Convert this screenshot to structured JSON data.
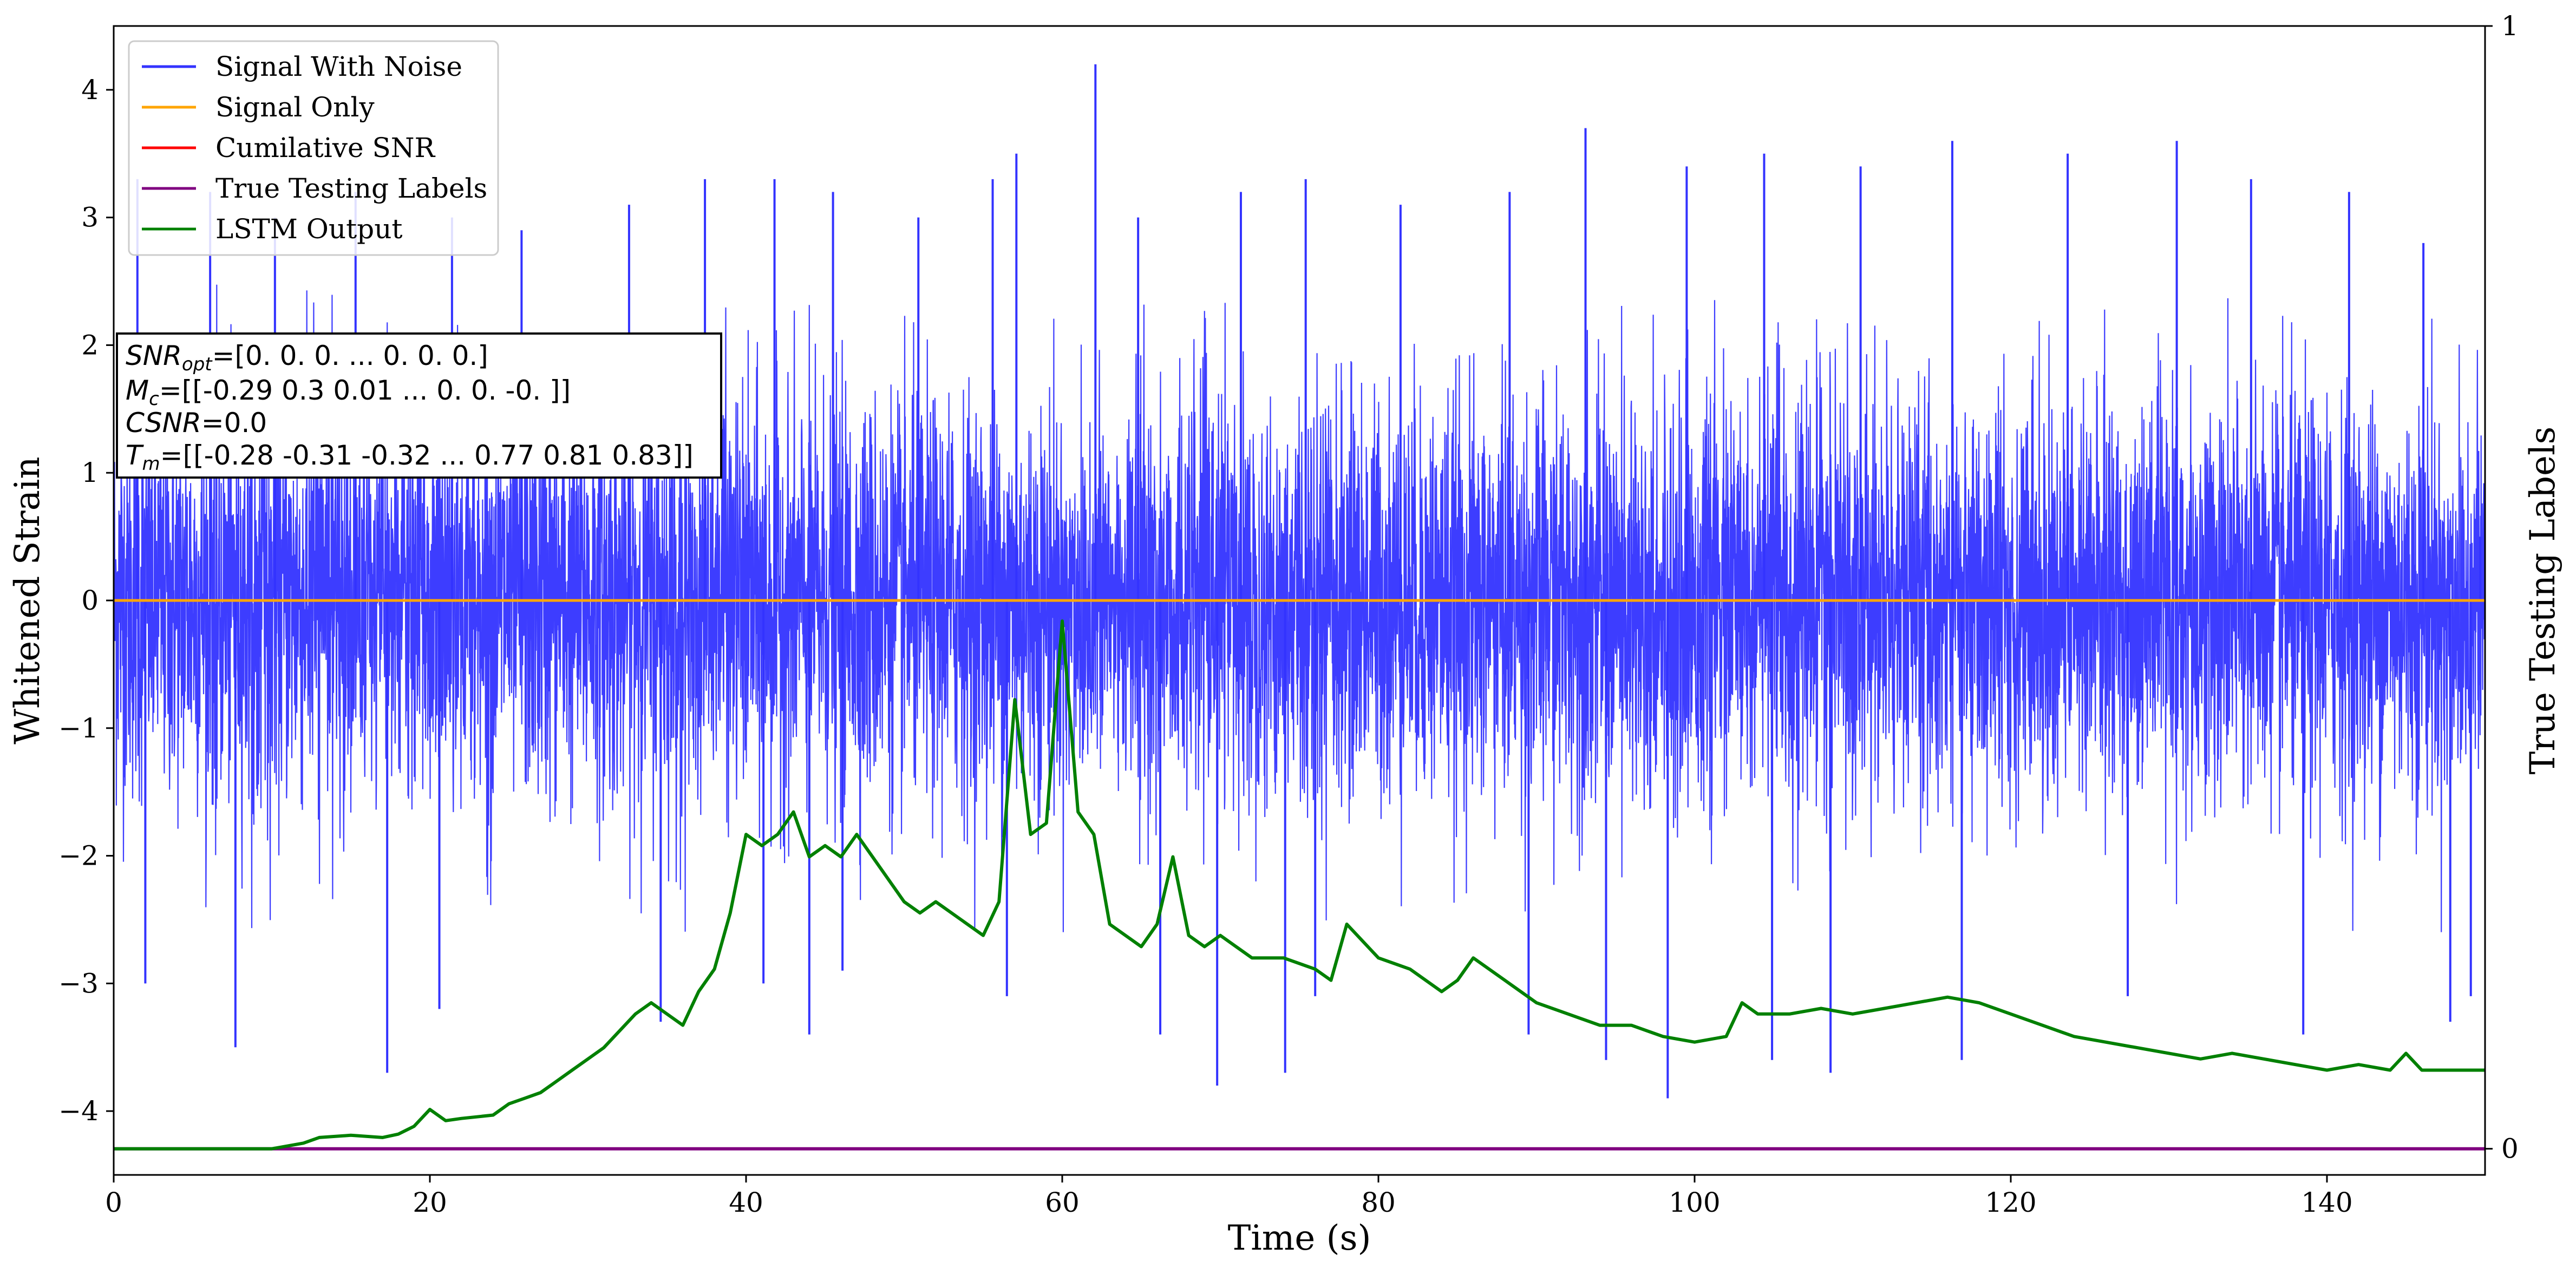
{
  "chart_data": {
    "type": "line",
    "xlabel": "Time (s)",
    "ylabel": "Whitened Strain",
    "y2label": "True Testing Labels",
    "xlim": [
      0,
      150
    ],
    "ylim": [
      -4.5,
      4.5
    ],
    "y2lim": [
      -0.0233,
      1.0
    ],
    "xticks": [
      "0",
      "20",
      "40",
      "60",
      "80",
      "100",
      "120",
      "140"
    ],
    "yticks": [
      "−4",
      "−3",
      "−2",
      "−1",
      "0",
      "1",
      "2",
      "3",
      "4"
    ],
    "y2ticks": [
      "0",
      "1"
    ],
    "grid": false,
    "legend_position": "top-left",
    "legend": [
      "Signal With Noise",
      "Signal Only",
      "Cumilative SNR",
      "True Testing Labels",
      "LSTM Output"
    ],
    "colors": {
      "signal_with_noise": "#3333ff",
      "signal_only": "#ffa500",
      "cumulative_snr": "#ff0000",
      "true_testing_labels": "#800080",
      "lstm_output": "#008000"
    },
    "annotation": {
      "line1": {
        "sym": "SNR",
        "sub": "opt",
        "val": "=[0. 0. 0. ... 0. 0. 0.]"
      },
      "line2": {
        "sym": "M",
        "sub": "c",
        "val": "=[[-0.29  0.3   0.01 ...  0.    0.   -0.  ]]"
      },
      "line3": {
        "sym": "CSNR",
        "sub": "",
        "val": "=0.0"
      },
      "line4": {
        "sym": "T",
        "sub": "m",
        "val": "=[[-0.28 -0.31 -0.32 ...  0.77  0.81  0.83]]"
      }
    },
    "series": [
      {
        "name": "Signal With Noise",
        "description": "dense noise band roughly between -2.5 and 3.2 with spikes up to 4.2 (at ~62 s) and down to -3.9",
        "envelope_upper": 2.5,
        "envelope_lower": -2.6,
        "x_spikes": [
          1.5,
          6.1,
          10.2,
          15.3,
          21.4,
          25.8,
          32.6,
          37.4,
          41.8,
          45.5,
          50.9,
          55.6,
          57.1,
          62.1,
          64.8,
          71.3,
          75.4,
          81.4,
          88.3,
          93.1,
          99.5,
          104.4,
          110.5,
          116.3,
          123.6,
          130.5,
          135.2,
          141.4,
          146.1,
          149.7
        ],
        "y_spikes": [
          3.3,
          3.2,
          3.0,
          3.2,
          3.0,
          2.9,
          3.1,
          3.3,
          3.3,
          3.2,
          3.0,
          3.3,
          3.5,
          4.2,
          3.0,
          3.2,
          3.3,
          3.1,
          3.2,
          3.7,
          3.4,
          3.5,
          3.4,
          3.6,
          3.5,
          3.6,
          3.3,
          3.2,
          2.8,
          0.5
        ],
        "x_low_spikes": [
          2.0,
          7.7,
          17.3,
          20.6,
          34.6,
          41.1,
          44.0,
          46.1,
          56.5,
          66.2,
          69.8,
          74.1,
          76.0,
          89.5,
          94.4,
          98.3,
          104.9,
          108.6,
          116.9,
          127.4,
          138.5,
          147.8,
          149.1
        ],
        "y_low_spikes": [
          -3.0,
          -3.5,
          -3.7,
          -3.2,
          -3.3,
          -3.0,
          -3.4,
          -2.9,
          -3.1,
          -3.4,
          -3.8,
          -3.7,
          -3.1,
          -3.4,
          -3.6,
          -3.9,
          -3.6,
          -3.7,
          -3.6,
          -3.1,
          -3.4,
          -3.3,
          -3.1
        ]
      },
      {
        "name": "Signal Only",
        "x": [
          0,
          150
        ],
        "y": [
          0,
          0
        ]
      },
      {
        "name": "Cumilative SNR",
        "x": [
          0,
          150
        ],
        "y": [
          0,
          0
        ]
      },
      {
        "name": "True Testing Labels",
        "axis": "right",
        "x": [
          0,
          150
        ],
        "y": [
          0,
          0
        ]
      },
      {
        "name": "LSTM Output",
        "axis": "right",
        "x": [
          0,
          5,
          10,
          12,
          13,
          15,
          17,
          18,
          19,
          20,
          21,
          22,
          24,
          25,
          26,
          27,
          28,
          29,
          30,
          31,
          32,
          33,
          34,
          35,
          36,
          37,
          38,
          39,
          40,
          41,
          42,
          43,
          44,
          45,
          46,
          47,
          48,
          49,
          50,
          51,
          52,
          53,
          54,
          55,
          56,
          57,
          58,
          59,
          60,
          61,
          62,
          63,
          64,
          65,
          66,
          67,
          68,
          69,
          70,
          72,
          74,
          76,
          77,
          78,
          80,
          82,
          84,
          85,
          86,
          88,
          90,
          92,
          94,
          96,
          98,
          100,
          102,
          103,
          104,
          106,
          108,
          110,
          112,
          114,
          116,
          118,
          120,
          122,
          124,
          126,
          128,
          130,
          132,
          134,
          136,
          138,
          140,
          142,
          144,
          145,
          146,
          148,
          150
        ],
        "y": [
          0.0,
          0.0,
          0.0,
          0.005,
          0.01,
          0.012,
          0.01,
          0.013,
          0.02,
          0.035,
          0.025,
          0.027,
          0.03,
          0.04,
          0.045,
          0.05,
          0.06,
          0.07,
          0.08,
          0.09,
          0.105,
          0.12,
          0.13,
          0.12,
          0.11,
          0.14,
          0.16,
          0.21,
          0.28,
          0.27,
          0.28,
          0.3,
          0.26,
          0.27,
          0.26,
          0.28,
          0.26,
          0.24,
          0.22,
          0.21,
          0.22,
          0.21,
          0.2,
          0.19,
          0.22,
          0.4,
          0.28,
          0.29,
          0.47,
          0.3,
          0.28,
          0.2,
          0.19,
          0.18,
          0.2,
          0.26,
          0.19,
          0.18,
          0.19,
          0.17,
          0.17,
          0.16,
          0.15,
          0.2,
          0.17,
          0.16,
          0.14,
          0.15,
          0.17,
          0.15,
          0.13,
          0.12,
          0.11,
          0.11,
          0.1,
          0.095,
          0.1,
          0.13,
          0.12,
          0.12,
          0.125,
          0.12,
          0.125,
          0.13,
          0.135,
          0.13,
          0.12,
          0.11,
          0.1,
          0.095,
          0.09,
          0.085,
          0.08,
          0.085,
          0.08,
          0.075,
          0.07,
          0.075,
          0.07,
          0.085,
          0.07,
          0.07,
          0.07
        ]
      }
    ]
  }
}
